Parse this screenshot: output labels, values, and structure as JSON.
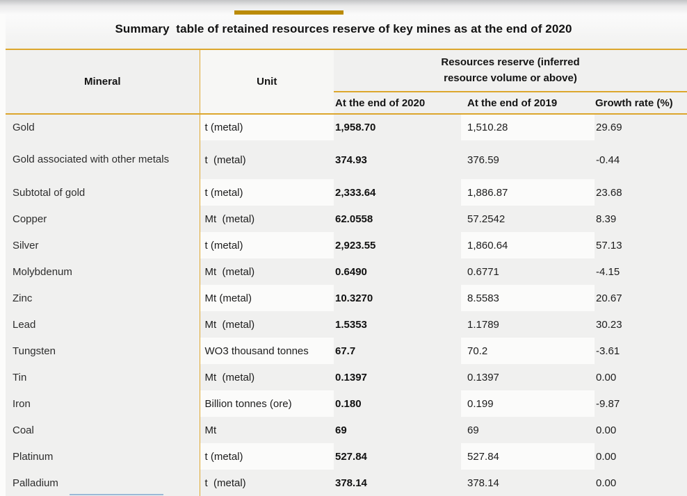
{
  "title": "Summary  table of retained resources reserve of key mines as at the end of 2020",
  "colors": {
    "gold_line": "#dca62c",
    "title_bar": "#bb8b07",
    "page_bg": "#f0f0ef",
    "striped_cell_bg": "#fbfbfa"
  },
  "table": {
    "header": {
      "mineral": "Mineral",
      "unit": "Unit",
      "group": "Resources reserve (inferred resource volume or above)",
      "end_2020": "At the end of 2020",
      "end_2019": "At the end of 2019",
      "growth": "Growth rate (%)"
    },
    "rows": [
      {
        "mineral": "Gold",
        "unit": "t (metal)",
        "v2020": "1,958.70",
        "v2019": "1,510.28",
        "growth": "29.69",
        "striped": true,
        "tall": false
      },
      {
        "mineral": "Gold associated with other metals",
        "unit": "t  (metal)",
        "v2020": "374.93",
        "v2019": "376.59",
        "growth": "-0.44",
        "striped": false,
        "tall": true
      },
      {
        "mineral": "Subtotal of gold",
        "unit": "t (metal)",
        "v2020": "2,333.64",
        "v2019": "1,886.87",
        "growth": "23.68",
        "striped": true,
        "tall": false
      },
      {
        "mineral": "Copper",
        "unit": "Mt  (metal)",
        "v2020": "62.0558",
        "v2019": "57.2542",
        "growth": "8.39",
        "striped": false,
        "tall": false
      },
      {
        "mineral": "Silver",
        "unit": "t (metal)",
        "v2020": "2,923.55",
        "v2019": "1,860.64",
        "growth": "57.13",
        "striped": true,
        "tall": false
      },
      {
        "mineral": "Molybdenum",
        "unit": "Mt  (metal)",
        "v2020": "0.6490",
        "v2019": "0.6771",
        "growth": "-4.15",
        "striped": false,
        "tall": false
      },
      {
        "mineral": "Zinc",
        "unit": "Mt (metal)",
        "v2020": "10.3270",
        "v2019": "8.5583",
        "growth": "20.67",
        "striped": true,
        "tall": false
      },
      {
        "mineral": "Lead",
        "unit": "Mt  (metal)",
        "v2020": "1.5353",
        "v2019": "1.1789",
        "growth": "30.23",
        "striped": false,
        "tall": false
      },
      {
        "mineral": "Tungsten",
        "unit": "WO3 thousand tonnes",
        "v2020": "67.7",
        "v2019": "70.2",
        "growth": "-3.61",
        "striped": true,
        "tall": false
      },
      {
        "mineral": "Tin",
        "unit": "Mt  (metal)",
        "v2020": "0.1397",
        "v2019": "0.1397",
        "growth": "0.00",
        "striped": false,
        "tall": false
      },
      {
        "mineral": "Iron",
        "unit": "Billion tonnes (ore)",
        "v2020": "0.180",
        "v2019": "0.199",
        "growth": "-9.87",
        "striped": true,
        "tall": false
      },
      {
        "mineral": "Coal",
        "unit": "Mt",
        "v2020": "69",
        "v2019": "69",
        "growth": "0.00",
        "striped": false,
        "tall": false
      },
      {
        "mineral": "Platinum",
        "unit": "t (metal)",
        "v2020": "527.84",
        "v2019": "527.84",
        "growth": "0.00",
        "striped": true,
        "tall": false
      },
      {
        "mineral": "Palladium",
        "unit": "t  (metal)",
        "v2020": "378.14",
        "v2019": "378.14",
        "growth": "0.00",
        "striped": false,
        "tall": false
      }
    ]
  }
}
